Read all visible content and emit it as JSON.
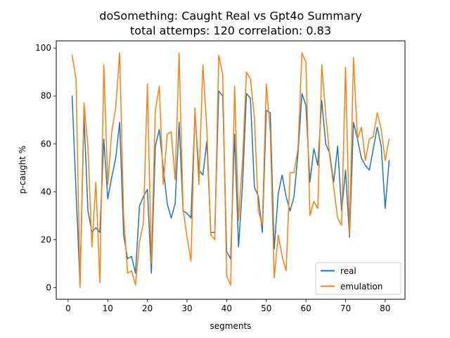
{
  "chart_data": {
    "type": "line",
    "title": [
      "doSomething: Caught Real vs Gpt4o Summary",
      "total attemps: 120 correlation: 0.83"
    ],
    "xlabel": "segments",
    "ylabel": "p-caught %",
    "xlim": [
      -3,
      85
    ],
    "ylim": [
      -4.9,
      103
    ],
    "xticks": [
      0,
      10,
      20,
      30,
      40,
      50,
      60,
      70,
      80
    ],
    "yticks": [
      0,
      20,
      40,
      60,
      80,
      100
    ],
    "grid": false,
    "legend_position": "lower right",
    "series": [
      {
        "name": "real",
        "color": "#1f77b4",
        "x": [
          1,
          2,
          3,
          4,
          5,
          6,
          7,
          8,
          9,
          10,
          11,
          12,
          13,
          14,
          15,
          16,
          17,
          18,
          19,
          20,
          21,
          22,
          23,
          24,
          25,
          26,
          27,
          28,
          29,
          30,
          31,
          32,
          33,
          34,
          35,
          36,
          37,
          38,
          39,
          40,
          41,
          42,
          43,
          44,
          45,
          46,
          47,
          48,
          49,
          50,
          51,
          52,
          53,
          54,
          55,
          56,
          57,
          58,
          59,
          60,
          61,
          62,
          63,
          64,
          65,
          66,
          67,
          68,
          69,
          70,
          71,
          72,
          73,
          74,
          75,
          76,
          77,
          78,
          79,
          80,
          81
        ],
        "values": [
          80,
          40,
          1,
          72,
          32,
          23,
          25,
          23,
          62,
          37,
          46,
          54,
          69,
          22,
          12,
          13,
          6,
          34,
          38,
          41,
          6,
          59,
          66,
          50,
          35,
          29,
          35,
          69,
          32,
          31,
          29,
          73,
          49,
          47,
          61,
          23,
          23,
          82,
          80,
          15,
          12,
          64,
          17,
          43,
          81,
          79,
          42,
          38,
          23,
          74,
          73,
          16,
          39,
          47,
          38,
          32,
          38,
          56,
          81,
          76,
          44,
          58,
          51,
          78,
          60,
          56,
          44,
          59,
          32,
          49,
          21,
          69,
          62,
          54,
          51,
          49,
          58,
          67,
          59,
          33,
          53
        ]
      },
      {
        "name": "emulation",
        "color": "#ff7f0e",
        "x": [
          1,
          2,
          3,
          4,
          5,
          6,
          7,
          8,
          9,
          10,
          11,
          12,
          13,
          14,
          15,
          16,
          17,
          18,
          19,
          20,
          21,
          22,
          23,
          24,
          25,
          26,
          27,
          28,
          29,
          30,
          31,
          32,
          33,
          34,
          35,
          36,
          37,
          38,
          39,
          40,
          41,
          42,
          43,
          44,
          45,
          46,
          47,
          48,
          49,
          50,
          51,
          52,
          53,
          54,
          55,
          56,
          57,
          58,
          59,
          60,
          61,
          62,
          63,
          64,
          65,
          66,
          67,
          68,
          69,
          70,
          71,
          72,
          73,
          74,
          75,
          76,
          77,
          78,
          79,
          80,
          81
        ],
        "values": [
          97,
          87,
          0,
          77,
          59,
          17,
          44,
          2,
          93,
          43,
          65,
          75,
          98,
          30,
          6,
          7,
          1,
          19,
          27,
          85,
          10,
          74,
          84,
          43,
          64,
          65,
          45,
          98,
          33,
          21,
          11,
          75,
          43,
          93,
          66,
          22,
          20,
          97,
          89,
          5,
          1,
          84,
          28,
          53,
          90,
          87,
          71,
          32,
          26,
          85,
          65,
          4,
          22,
          13,
          7,
          48,
          48,
          58,
          98,
          94,
          30,
          36,
          33,
          93,
          72,
          55,
          42,
          29,
          26,
          92,
          22,
          96,
          62,
          67,
          53,
          62,
          63,
          73,
          66,
          53,
          62
        ]
      }
    ]
  }
}
